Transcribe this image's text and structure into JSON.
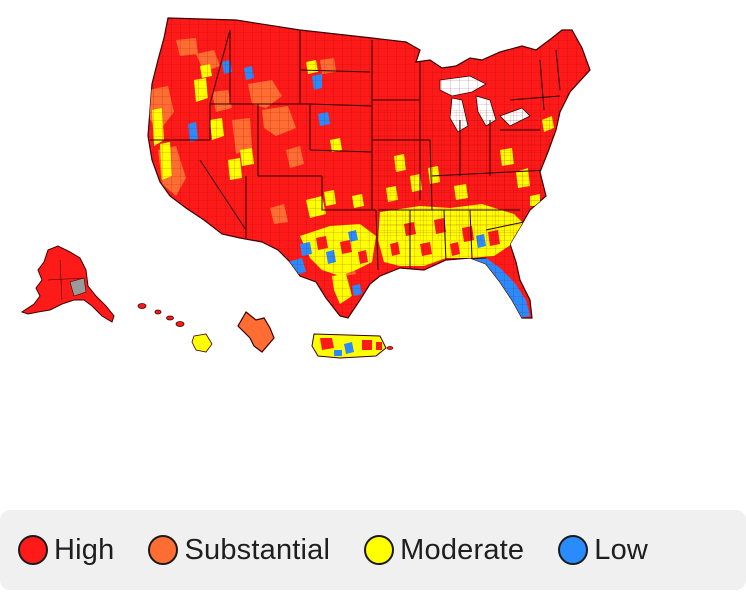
{
  "legend": {
    "items": [
      {
        "label": "High",
        "color": "#ff1a1a"
      },
      {
        "label": "Substantial",
        "color": "#ff6d32"
      },
      {
        "label": "Moderate",
        "color": "#ffff00"
      },
      {
        "label": "Low",
        "color": "#2a8bff"
      }
    ]
  },
  "map": {
    "regions": [
      "contiguous-us",
      "alaska",
      "hawaii",
      "district-of-columbia",
      "puerto-rico"
    ],
    "colors": {
      "high": "#ff1a1a",
      "substantial": "#ff6d32",
      "moderate": "#ffff00",
      "low": "#2a8bff",
      "no_data": "#9a9a9a",
      "border": "#5a0000"
    }
  }
}
